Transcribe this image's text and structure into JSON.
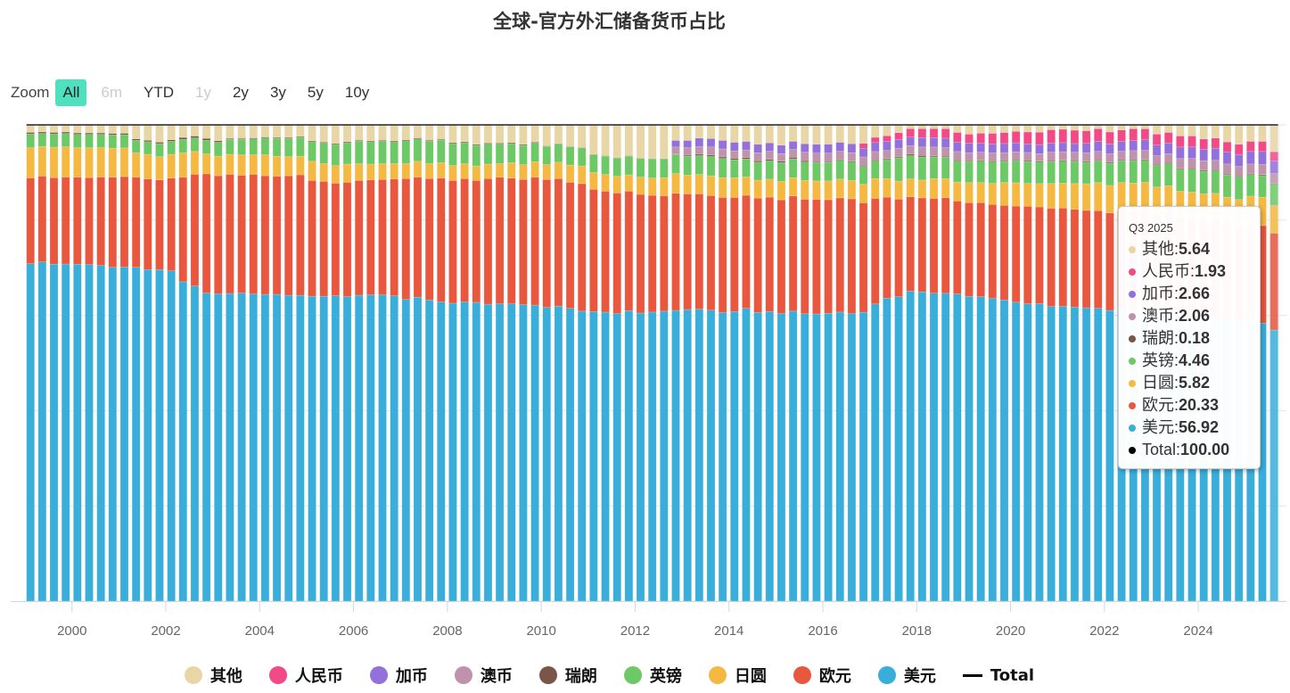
{
  "title": "全球-官方外汇储备货币占比",
  "zoom": {
    "label": "Zoom",
    "buttons": [
      {
        "label": "All",
        "state": "active"
      },
      {
        "label": "6m",
        "state": "disabled"
      },
      {
        "label": "YTD",
        "state": "normal"
      },
      {
        "label": "1y",
        "state": "disabled"
      },
      {
        "label": "2y",
        "state": "normal"
      },
      {
        "label": "3y",
        "state": "normal"
      },
      {
        "label": "5y",
        "state": "normal"
      },
      {
        "label": "10y",
        "state": "normal"
      }
    ]
  },
  "tooltip": {
    "header": "Q3 2025",
    "rows": [
      {
        "name": "其他",
        "value": "5.64",
        "color": "#e8d6a6"
      },
      {
        "name": "人民币",
        "value": "1.93",
        "color": "#f24a86"
      },
      {
        "name": "加币",
        "value": "2.66",
        "color": "#9370db"
      },
      {
        "name": "澳币",
        "value": "2.06",
        "color": "#bf93ac"
      },
      {
        "name": "瑞朗",
        "value": "0.18",
        "color": "#7b5547"
      },
      {
        "name": "英镑",
        "value": "4.46",
        "color": "#6cc965"
      },
      {
        "name": "日圆",
        "value": "5.82",
        "color": "#f5b942"
      },
      {
        "name": "欧元",
        "value": "20.33",
        "color": "#e8573e"
      },
      {
        "name": "美元",
        "value": "56.92",
        "color": "#3aaedb"
      },
      {
        "name": "Total",
        "value": "100.00",
        "color": "#000000"
      }
    ]
  },
  "legend": [
    {
      "name": "其他",
      "color": "#e8d6a6",
      "type": "dot"
    },
    {
      "name": "人民币",
      "color": "#f24a86",
      "type": "dot"
    },
    {
      "name": "加币",
      "color": "#9370db",
      "type": "dot"
    },
    {
      "name": "澳币",
      "color": "#bf93ac",
      "type": "dot"
    },
    {
      "name": "瑞朗",
      "color": "#7b5547",
      "type": "dot"
    },
    {
      "name": "英镑",
      "color": "#6cc965",
      "type": "dot"
    },
    {
      "name": "日圆",
      "color": "#f5b942",
      "type": "dot"
    },
    {
      "name": "欧元",
      "color": "#e8573e",
      "type": "dot"
    },
    {
      "name": "美元",
      "color": "#3aaedb",
      "type": "dot"
    },
    {
      "name": "Total",
      "color": "#000000",
      "type": "line"
    }
  ],
  "chart_data": {
    "type": "bar",
    "stacked": true,
    "title": "全球-官方外汇储备货币占比",
    "xlabel": "",
    "ylabel": "",
    "ylim": [
      0,
      100
    ],
    "x_start": "Q1 1999",
    "x_end": "Q3 2025",
    "frequency": "quarterly",
    "xticks": [
      "2000",
      "2002",
      "2004",
      "2006",
      "2008",
      "2010",
      "2012",
      "2014",
      "2016",
      "2018",
      "2020",
      "2022",
      "2024"
    ],
    "grid": true,
    "legend_position": "bottom",
    "highlighted": "Q3 2025",
    "series_order_bottom_to_top": [
      "美元",
      "欧元",
      "日圆",
      "英镑",
      "瑞朗",
      "澳币",
      "加币",
      "人民币",
      "其他"
    ],
    "series": [
      {
        "name": "美元",
        "color": "#3aaedb",
        "values": [
          71.2,
          72.1,
          70.9,
          71.0,
          70.9,
          70.9,
          70.7,
          70.1,
          71.0,
          71.5,
          71.0,
          71.0,
          70.7,
          68.4,
          67.5,
          66.0,
          65.8,
          65.9,
          66.0,
          65.8,
          65.7,
          65.7,
          65.5,
          65.5,
          65.3,
          65.3,
          65.4,
          65.2,
          65.5,
          65.6,
          65.6,
          65.4,
          64.6,
          65.1,
          64.5,
          64.1,
          63.8,
          64.1,
          64.0,
          63.6,
          63.7,
          63.7,
          63.5,
          63.4,
          62.9,
          63.2,
          62.7,
          62.1,
          62.0,
          61.9,
          61.6,
          62.2,
          61.7,
          61.9,
          62.1,
          61.6,
          61.6,
          61.8,
          61.7,
          61.2,
          61.4,
          61.9,
          61.1,
          61.3,
          61.0,
          61.5,
          61.0,
          60.9,
          61.1,
          61.3,
          61.0,
          61.6,
          62.8,
          63.6,
          64.2,
          65.5,
          65.6,
          65.3,
          64.7,
          64.5,
          64.1,
          64.0,
          63.5,
          63.3,
          62.8,
          62.5,
          62.5,
          61.9,
          61.8,
          61.7,
          61.5,
          61.8,
          61.4,
          61.9,
          60.5,
          60.3,
          59.1,
          59.7,
          59.2,
          59.4,
          59.3,
          58.9,
          58.5,
          58.4,
          58.4,
          57.8,
          56.92
        ]
      },
      {
        "name": "欧元",
        "color": "#e8573e",
        "values": [
          18.1,
          18.2,
          18.2,
          18.3,
          18.3,
          18.3,
          18.6,
          18.9,
          19.2,
          19.3,
          19.4,
          19.2,
          19.8,
          22.4,
          23.9,
          25.5,
          25.3,
          25.5,
          25.2,
          25.6,
          25.4,
          25.3,
          25.6,
          25.8,
          24.8,
          24.6,
          24.1,
          24.5,
          24.6,
          24.6,
          24.7,
          25.0,
          25.9,
          25.7,
          26.0,
          26.5,
          26.3,
          26.4,
          26.1,
          26.9,
          27.1,
          26.9,
          26.8,
          27.4,
          27.4,
          27.3,
          27.0,
          27.3,
          26.2,
          25.9,
          25.8,
          25.6,
          25.4,
          25.0,
          24.7,
          24.8,
          24.4,
          24.4,
          24.3,
          24.4,
          24.2,
          23.9,
          24.2,
          24.2,
          24.1,
          24.4,
          24.3,
          24.3,
          24.1,
          24.2,
          24.3,
          23.3,
          22.3,
          21.2,
          20.6,
          19.9,
          19.9,
          20.1,
          20.1,
          19.5,
          19.7,
          19.8,
          19.7,
          19.9,
          20.2,
          20.5,
          20.3,
          20.6,
          20.6,
          20.5,
          20.4,
          20.6,
          20.6,
          20.5,
          21.1,
          21.5,
          21.2,
          21.1,
          20.6,
          20.5,
          20.0,
          20.4,
          20.3,
          19.6,
          20.1,
          20.3,
          20.33
        ]
      },
      {
        "name": "日圆",
        "color": "#f5b942",
        "values": [
          6.4,
          6.3,
          6.4,
          6.4,
          6.2,
          6.3,
          6.2,
          6.1,
          6.1,
          5.2,
          5.3,
          5.0,
          5.1,
          5.2,
          4.9,
          4.3,
          4.2,
          4.3,
          4.4,
          4.2,
          4.5,
          4.3,
          4.1,
          4.0,
          4.1,
          3.8,
          3.8,
          3.9,
          3.6,
          3.4,
          3.4,
          3.3,
          3.2,
          3.4,
          3.2,
          3.3,
          3.2,
          3.2,
          3.1,
          3.1,
          2.9,
          3.3,
          3.2,
          3.3,
          3.2,
          3.5,
          3.7,
          3.8,
          3.6,
          3.6,
          3.6,
          3.5,
          3.7,
          3.7,
          3.9,
          4.2,
          4.0,
          4.1,
          4.2,
          4.2,
          4.2,
          3.9,
          3.8,
          3.8,
          3.9,
          3.9,
          4.0,
          3.9,
          4.0,
          4.0,
          3.9,
          4.0,
          4.2,
          3.9,
          3.8,
          3.8,
          3.8,
          4.2,
          4.0,
          4.0,
          4.2,
          4.2,
          4.4,
          4.8,
          4.9,
          4.8,
          4.9,
          5.2,
          5.2,
          5.4,
          5.6,
          5.9,
          5.8,
          5.9,
          6.0,
          5.8,
          5.8,
          5.6,
          5.5,
          5.5,
          5.4,
          5.4,
          5.2,
          5.5,
          5.8,
          5.9,
          5.82
        ]
      },
      {
        "name": "英镑",
        "color": "#6cc965",
        "values": [
          2.9,
          2.8,
          2.8,
          2.8,
          2.8,
          2.8,
          2.8,
          2.8,
          2.8,
          2.7,
          2.7,
          2.8,
          2.8,
          2.9,
          2.9,
          2.9,
          3.0,
          3.2,
          3.3,
          3.4,
          3.6,
          3.8,
          3.9,
          4.0,
          4.2,
          4.4,
          4.5,
          4.6,
          4.8,
          4.8,
          4.8,
          4.7,
          4.9,
          4.8,
          4.8,
          4.8,
          4.7,
          4.5,
          4.4,
          4.3,
          4.2,
          4.1,
          4.1,
          4.0,
          3.9,
          3.9,
          3.9,
          3.9,
          3.8,
          3.9,
          3.9,
          4.0,
          4.0,
          4.1,
          4.0,
          4.0,
          4.0,
          4.0,
          4.1,
          4.1,
          3.8,
          3.8,
          3.8,
          3.9,
          4.0,
          4.0,
          3.9,
          3.9,
          3.9,
          4.0,
          3.9,
          3.8,
          3.7,
          4.0,
          4.9,
          4.9,
          4.9,
          4.6,
          4.5,
          4.4,
          4.4,
          4.5,
          4.5,
          4.4,
          4.6,
          4.6,
          4.5,
          4.6,
          4.6,
          4.6,
          4.5,
          4.6,
          4.7,
          4.6,
          4.7,
          4.6,
          4.5,
          4.6,
          4.6,
          4.8,
          4.7,
          4.7,
          4.6,
          4.7,
          4.5,
          4.5,
          4.46
        ]
      },
      {
        "name": "瑞朗",
        "color": "#7b5547",
        "values": [
          0.3,
          0.3,
          0.3,
          0.3,
          0.3,
          0.3,
          0.3,
          0.3,
          0.3,
          0.3,
          0.3,
          0.3,
          0.3,
          0.4,
          0.4,
          0.4,
          0.3,
          0.2,
          0.2,
          0.2,
          0.2,
          0.2,
          0.2,
          0.2,
          0.2,
          0.2,
          0.2,
          0.2,
          0.2,
          0.2,
          0.2,
          0.2,
          0.2,
          0.2,
          0.2,
          0.2,
          0.2,
          0.2,
          0.2,
          0.2,
          0.2,
          0.2,
          0.2,
          0.2,
          0.1,
          0.1,
          0.1,
          0.1,
          0.1,
          0.1,
          0.1,
          0.1,
          0.1,
          0.1,
          0.1,
          0.1,
          0.2,
          0.3,
          0.3,
          0.3,
          0.3,
          0.3,
          0.3,
          0.3,
          0.3,
          0.3,
          0.3,
          0.2,
          0.2,
          0.2,
          0.2,
          0.2,
          0.2,
          0.2,
          0.2,
          0.3,
          0.3,
          0.2,
          0.2,
          0.2,
          0.2,
          0.2,
          0.2,
          0.2,
          0.2,
          0.2,
          0.2,
          0.2,
          0.2,
          0.2,
          0.2,
          0.2,
          0.2,
          0.2,
          0.2,
          0.2,
          0.2,
          0.2,
          0.2,
          0.2,
          0.2,
          0.2,
          0.2,
          0.2,
          0.2,
          0.2,
          0.18
        ]
      },
      {
        "name": "澳币",
        "color": "#bf93ac",
        "values": [
          0,
          0,
          0,
          0,
          0,
          0,
          0,
          0,
          0,
          0,
          0,
          0,
          0,
          0,
          0,
          0,
          0,
          0,
          0,
          0,
          0,
          0,
          0,
          0,
          0,
          0,
          0,
          0,
          0,
          0,
          0,
          0,
          0,
          0,
          0,
          0,
          0,
          0,
          0,
          0,
          0,
          0,
          0,
          0,
          0,
          0,
          0,
          0,
          0,
          0,
          0,
          0,
          0,
          0,
          0,
          1.5,
          1.6,
          1.6,
          1.7,
          1.7,
          1.6,
          1.6,
          1.7,
          1.7,
          1.6,
          1.7,
          1.8,
          1.8,
          1.8,
          1.7,
          1.8,
          1.8,
          1.8,
          1.7,
          1.8,
          1.8,
          1.8,
          1.9,
          1.8,
          1.8,
          1.7,
          1.7,
          1.7,
          1.7,
          1.7,
          1.7,
          1.6,
          1.8,
          1.8,
          1.8,
          1.8,
          1.8,
          1.8,
          1.8,
          1.9,
          1.9,
          1.8,
          1.9,
          2.0,
          2.0,
          2.0,
          2.0,
          2.1,
          2.0,
          2.0,
          2.1,
          2.06
        ]
      },
      {
        "name": "加币",
        "color": "#9370db",
        "values": [
          0,
          0,
          0,
          0,
          0,
          0,
          0,
          0,
          0,
          0,
          0,
          0,
          0,
          0,
          0,
          0,
          0,
          0,
          0,
          0,
          0,
          0,
          0,
          0,
          0,
          0,
          0,
          0,
          0,
          0,
          0,
          0,
          0,
          0,
          0,
          0,
          0,
          0,
          0,
          0,
          0,
          0,
          0,
          0,
          0,
          0,
          0,
          0,
          0,
          0,
          0,
          0,
          0,
          0,
          0,
          1.4,
          1.5,
          1.8,
          1.8,
          1.8,
          1.8,
          1.8,
          1.8,
          1.8,
          1.8,
          1.7,
          1.8,
          1.9,
          1.9,
          1.9,
          1.9,
          1.8,
          1.9,
          1.9,
          1.9,
          1.8,
          2.0,
          2.0,
          2.0,
          2.0,
          2.0,
          1.9,
          1.9,
          1.9,
          1.9,
          1.8,
          1.9,
          1.9,
          1.9,
          1.8,
          2.0,
          2.1,
          2.1,
          2.1,
          2.1,
          2.2,
          2.2,
          2.2,
          2.4,
          2.4,
          2.4,
          2.5,
          2.5,
          2.5,
          2.6,
          2.7,
          2.66
        ]
      },
      {
        "name": "人民币",
        "color": "#f24a86",
        "values": [
          0,
          0,
          0,
          0,
          0,
          0,
          0,
          0,
          0,
          0,
          0,
          0,
          0,
          0,
          0,
          0,
          0,
          0,
          0,
          0,
          0,
          0,
          0,
          0,
          0,
          0,
          0,
          0,
          0,
          0,
          0,
          0,
          0,
          0,
          0,
          0,
          0,
          0,
          0,
          0,
          0,
          0,
          0,
          0,
          0,
          0,
          0,
          0,
          0,
          0,
          0,
          0,
          0,
          0,
          0,
          0,
          0,
          0,
          0,
          0,
          0,
          0,
          0,
          0,
          0,
          0,
          0,
          0,
          0,
          0,
          0,
          0,
          0,
          0,
          0,
          0,
          0,
          0,
          0,
          0,
          0,
          0,
          0,
          0,
          0,
          0,
          0,
          0,
          0,
          0,
          0,
          0,
          0,
          0,
          0,
          0,
          0,
          0,
          0,
          0,
          0,
          0,
          0,
          0,
          0,
          0,
          1.93
        ]
      },
      {
        "name": "其他",
        "color": "#e8d6a6",
        "values": [
          1.6,
          1.5,
          1.6,
          1.5,
          1.7,
          1.7,
          1.7,
          1.8,
          1.8,
          3.0,
          3.3,
          3.7,
          3.2,
          2.7,
          2.4,
          2.9,
          3.4,
          2.9,
          2.9,
          2.8,
          2.6,
          2.7,
          2.7,
          2.5,
          3.4,
          3.7,
          4.0,
          3.6,
          3.3,
          3.4,
          3.3,
          3.4,
          3.2,
          2.8,
          3.3,
          3.1,
          3.8,
          3.6,
          4.2,
          3.9,
          3.9,
          3.8,
          4.2,
          3.7,
          4.5,
          4.0,
          4.6,
          4.8,
          6.3,
          6.6,
          7.0,
          6.6,
          7.1,
          7.2,
          7.2,
          3.3,
          3.3,
          2.8,
          2.9,
          3.3,
          3.7,
          3.5,
          4.1,
          3.8,
          4.3,
          3.5,
          4.0,
          4.1,
          4.1,
          3.7,
          4.0,
          4.6,
          3.3,
          3.0,
          2.5,
          1.4,
          1.4,
          1.3,
          2.0,
          2.8,
          3.1,
          3.0,
          3.1,
          3.0,
          2.8,
          3.0,
          3.1,
          2.7,
          2.6,
          2.8,
          2.8,
          2.4,
          3.0,
          2.5,
          2.3,
          2.2,
          3.3,
          2.9,
          3.7,
          3.7,
          4.2,
          4.0,
          4.8,
          5.3,
          4.7,
          4.7,
          5.64
        ]
      }
    ],
    "rmb_values_note": "",
    "rmb_values": []
  }
}
